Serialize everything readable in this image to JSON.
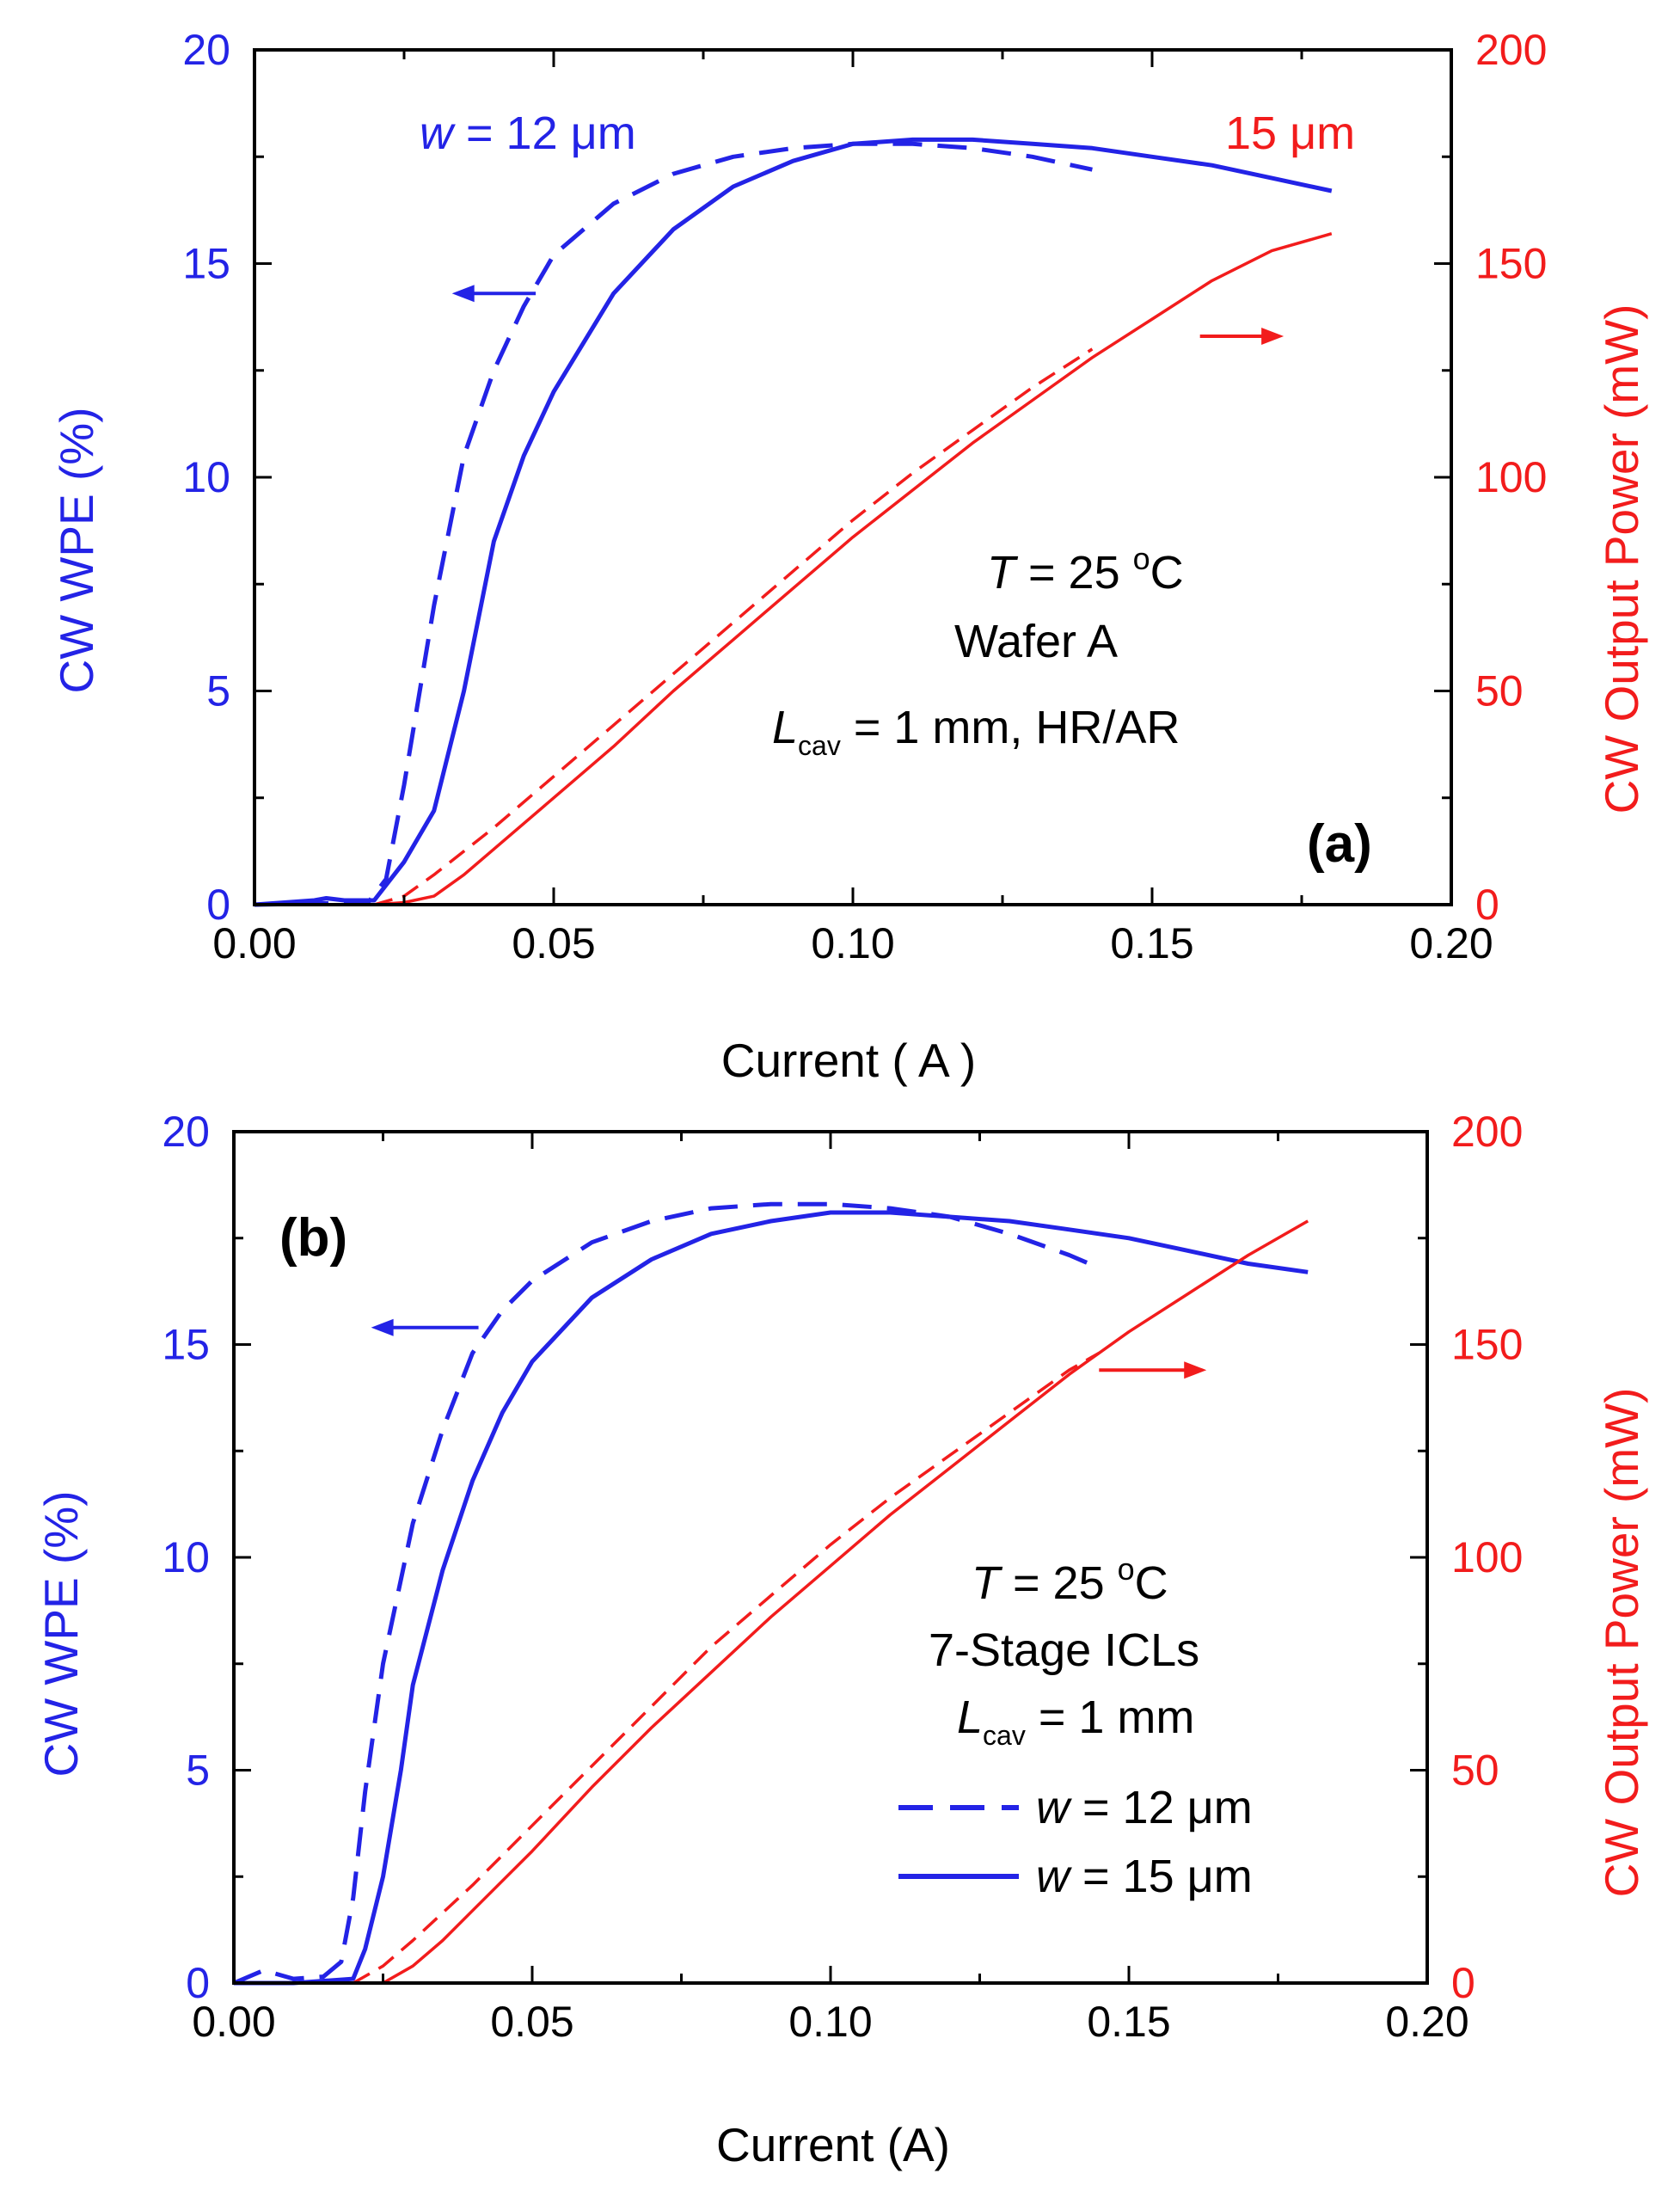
{
  "colors": {
    "blue": "#2323e6",
    "red": "#f21c1c",
    "axis": "#000000"
  },
  "chart_data": [
    {
      "type": "line",
      "panel_label": "(a)",
      "xlabel": "Current ( A )",
      "ylabel_left": "CW  WPE  (%)",
      "ylabel_right": "CW  Output Power (mW)",
      "xlim": [
        0,
        0.2
      ],
      "ylim_left": [
        0,
        20
      ],
      "ylim_right": [
        0,
        200
      ],
      "x_ticks": [
        "0.00",
        "0.05",
        "0.10",
        "0.15",
        "0.20"
      ],
      "y_left_ticks": [
        "0",
        "5",
        "10",
        "15",
        "20"
      ],
      "y_right_ticks": [
        "0",
        "50",
        "100",
        "150",
        "200"
      ],
      "annotations": {
        "blue_label": {
          "italic": "w",
          "text": " = 12 μm"
        },
        "red_label": "15 μm",
        "temp": {
          "italic": "T",
          "text": " = 25 ",
          "sup": "o",
          "unit": "C"
        },
        "wafer": "Wafer A",
        "cavity": {
          "italic": "L",
          "sub": "cav",
          "text": " = 1 mm,  HR/AR"
        }
      },
      "series": [
        {
          "name": "WPE w=12 μm",
          "axis": "left",
          "color": "blue",
          "style": "dashed",
          "x": [
            0.0,
            0.019,
            0.022,
            0.025,
            0.03,
            0.035,
            0.04,
            0.045,
            0.05,
            0.06,
            0.07,
            0.08,
            0.09,
            0.1,
            0.11,
            0.12,
            0.13,
            0.14
          ],
          "y": [
            0.0,
            0.05,
            0.6,
            2.8,
            7.0,
            10.5,
            12.5,
            14.0,
            15.2,
            16.4,
            17.1,
            17.5,
            17.7,
            17.8,
            17.8,
            17.7,
            17.5,
            17.2
          ]
        },
        {
          "name": "WPE w=15 μm",
          "axis": "left",
          "color": "blue",
          "style": "solid",
          "x": [
            0.0,
            0.005,
            0.01,
            0.012,
            0.015,
            0.02,
            0.025,
            0.03,
            0.035,
            0.04,
            0.045,
            0.05,
            0.06,
            0.07,
            0.08,
            0.09,
            0.1,
            0.11,
            0.12,
            0.13,
            0.14,
            0.15,
            0.16,
            0.17,
            0.18
          ],
          "y": [
            0.0,
            0.05,
            0.1,
            0.15,
            0.1,
            0.1,
            1.0,
            2.2,
            5.0,
            8.5,
            10.5,
            12.0,
            14.3,
            15.8,
            16.8,
            17.4,
            17.8,
            17.9,
            17.9,
            17.8,
            17.7,
            17.5,
            17.3,
            17.0,
            16.7
          ]
        },
        {
          "name": "Power w=12 μm",
          "axis": "right",
          "color": "red",
          "style": "dashed",
          "x": [
            0.02,
            0.025,
            0.03,
            0.04,
            0.05,
            0.06,
            0.07,
            0.08,
            0.09,
            0.1,
            0.11,
            0.12,
            0.13,
            0.14
          ],
          "y": [
            0.0,
            2.0,
            7.0,
            18.0,
            30.0,
            42.0,
            54.0,
            66.0,
            78.0,
            90.0,
            101.0,
            111.0,
            121.0,
            130.0
          ]
        },
        {
          "name": "Power w=15 μm",
          "axis": "right",
          "color": "red",
          "style": "solid",
          "x": [
            0.02,
            0.025,
            0.03,
            0.035,
            0.04,
            0.05,
            0.06,
            0.07,
            0.08,
            0.09,
            0.1,
            0.11,
            0.12,
            0.13,
            0.14,
            0.15,
            0.16,
            0.17,
            0.18
          ],
          "y": [
            0.0,
            0.5,
            2.0,
            7.0,
            13.0,
            25.0,
            37.0,
            50.0,
            62.0,
            74.0,
            86.0,
            97.0,
            108.0,
            118.0,
            128.0,
            137.0,
            146.0,
            153.0,
            157.0
          ]
        }
      ],
      "arrows": [
        {
          "color": "blue",
          "direction": "left",
          "x_start": 0.047,
          "x_end": 0.033,
          "y": 14.3,
          "axis": "left"
        },
        {
          "color": "red",
          "direction": "right",
          "x_start": 0.158,
          "x_end": 0.172,
          "y": 13.3,
          "axis": "left"
        }
      ]
    },
    {
      "type": "line",
      "panel_label": "(b)",
      "xlabel": "Current (A)",
      "ylabel_left": "CW WPE  (%)",
      "ylabel_right": "CW Output Power (mW)",
      "xlim": [
        0,
        0.2
      ],
      "ylim_left": [
        0,
        20
      ],
      "ylim_right": [
        0,
        200
      ],
      "x_ticks": [
        "0.00",
        "0.05",
        "0.10",
        "0.15",
        "0.20"
      ],
      "y_left_ticks": [
        "0",
        "5",
        "10",
        "15",
        "20"
      ],
      "y_right_ticks": [
        "0",
        "50",
        "100",
        "150",
        "200"
      ],
      "annotations": {
        "temp": {
          "italic": "T",
          "text": " = 25 ",
          "sup": "o",
          "unit": "C"
        },
        "stage": "7-Stage ICLs",
        "cavity": {
          "italic": "L",
          "sub": "cav",
          "text": " = 1 mm"
        }
      },
      "legend": [
        {
          "style": "dashed",
          "italic": "w",
          "text": " = 12 μm"
        },
        {
          "style": "solid",
          "italic": "w",
          "text": " = 15 μm"
        }
      ],
      "series": [
        {
          "name": "WPE w=12 μm",
          "axis": "left",
          "color": "blue",
          "style": "dashed",
          "x": [
            0.0,
            0.005,
            0.01,
            0.015,
            0.018,
            0.02,
            0.022,
            0.025,
            0.03,
            0.035,
            0.04,
            0.045,
            0.05,
            0.06,
            0.07,
            0.08,
            0.09,
            0.1,
            0.11,
            0.12,
            0.13,
            0.14,
            0.145
          ],
          "y": [
            0.0,
            0.3,
            0.1,
            0.15,
            0.5,
            2.0,
            4.5,
            7.5,
            10.8,
            13.0,
            14.8,
            15.8,
            16.5,
            17.4,
            17.9,
            18.2,
            18.3,
            18.3,
            18.2,
            18.0,
            17.6,
            17.1,
            16.8
          ]
        },
        {
          "name": "WPE w=15 μm",
          "axis": "left",
          "color": "blue",
          "style": "solid",
          "x": [
            0.0,
            0.01,
            0.02,
            0.022,
            0.025,
            0.028,
            0.03,
            0.035,
            0.04,
            0.045,
            0.05,
            0.06,
            0.07,
            0.08,
            0.09,
            0.1,
            0.11,
            0.12,
            0.13,
            0.14,
            0.15,
            0.16,
            0.17,
            0.18
          ],
          "y": [
            0.0,
            0.0,
            0.1,
            0.8,
            2.5,
            5.0,
            7.0,
            9.7,
            11.8,
            13.4,
            14.6,
            16.1,
            17.0,
            17.6,
            17.9,
            18.1,
            18.1,
            18.0,
            17.9,
            17.7,
            17.5,
            17.2,
            16.9,
            16.7
          ]
        },
        {
          "name": "Power w=12 μm",
          "axis": "right",
          "color": "red",
          "style": "dashed",
          "x": [
            0.02,
            0.025,
            0.03,
            0.04,
            0.05,
            0.06,
            0.07,
            0.08,
            0.09,
            0.1,
            0.11,
            0.12,
            0.13,
            0.14,
            0.145
          ],
          "y": [
            0.0,
            4.0,
            10.0,
            23.0,
            37.0,
            51.0,
            65.0,
            79.0,
            91.0,
            103.0,
            114.0,
            124.0,
            134.0,
            144.0,
            148.0
          ]
        },
        {
          "name": "Power w=15 μm",
          "axis": "right",
          "color": "red",
          "style": "solid",
          "x": [
            0.025,
            0.03,
            0.035,
            0.04,
            0.05,
            0.06,
            0.07,
            0.08,
            0.09,
            0.1,
            0.11,
            0.12,
            0.13,
            0.14,
            0.15,
            0.16,
            0.17,
            0.18
          ],
          "y": [
            0.0,
            4.0,
            10.0,
            17.0,
            31.0,
            46.0,
            60.0,
            73.0,
            86.0,
            98.0,
            110.0,
            121.0,
            132.0,
            143.0,
            153.0,
            162.0,
            171.0,
            179.0
          ]
        }
      ],
      "arrows": [
        {
          "color": "blue",
          "direction": "left",
          "x_start": 0.041,
          "x_end": 0.023,
          "y": 15.4,
          "axis": "left"
        },
        {
          "color": "red",
          "direction": "right",
          "x_start": 0.145,
          "x_end": 0.163,
          "y": 14.4,
          "axis": "left"
        }
      ]
    }
  ]
}
